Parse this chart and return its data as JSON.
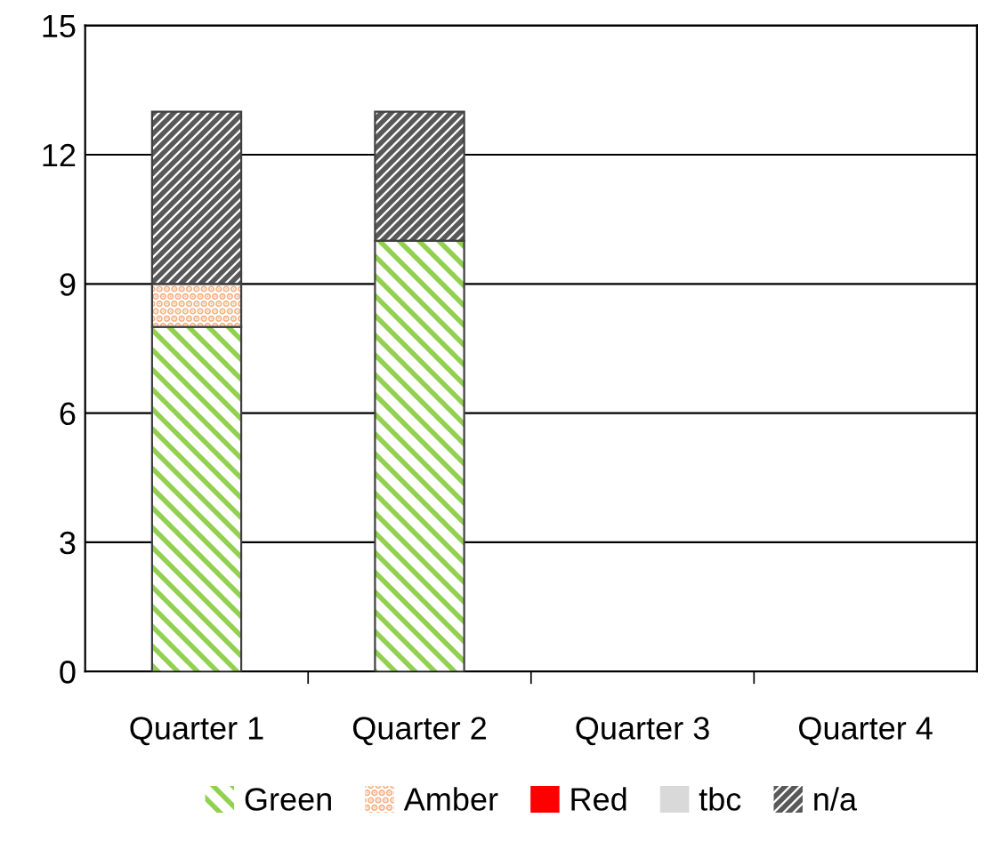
{
  "chart_data": {
    "type": "bar",
    "stacked": true,
    "categories": [
      "Quarter 1",
      "Quarter 2",
      "Quarter 3",
      "Quarter 4"
    ],
    "series": [
      {
        "name": "Green",
        "color": "#92d050",
        "values": [
          8,
          10,
          0,
          0
        ]
      },
      {
        "name": "Amber",
        "color": "#f4b183",
        "values": [
          1,
          0,
          0,
          0
        ]
      },
      {
        "name": "Red",
        "color": "#ff0000",
        "values": [
          0,
          0,
          0,
          0
        ]
      },
      {
        "name": "tbc",
        "color": "#d9d9d9",
        "values": [
          0,
          0,
          0,
          0
        ]
      },
      {
        "name": "n/a",
        "color": "#595959",
        "values": [
          4,
          3,
          0,
          0
        ]
      }
    ],
    "ylim": [
      0,
      15
    ],
    "yticks": [
      0,
      3,
      6,
      9,
      12,
      15
    ],
    "grid": "y",
    "legend": "bottom"
  }
}
